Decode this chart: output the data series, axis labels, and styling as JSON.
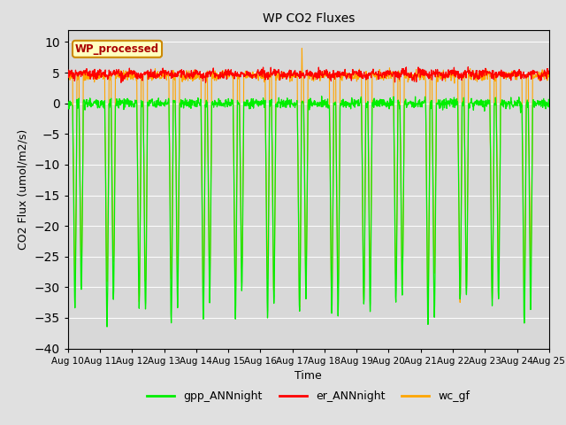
{
  "title": "WP CO2 Fluxes",
  "xlabel": "Time",
  "ylabel_display": "CO2 Flux (umol/m2/s)",
  "ylim": [
    -40,
    12
  ],
  "yticks": [
    -40,
    -35,
    -30,
    -25,
    -20,
    -15,
    -10,
    -5,
    0,
    5,
    10
  ],
  "xtick_labels": [
    "Aug 10",
    "Aug 11",
    "Aug 12",
    "Aug 13",
    "Aug 14",
    "Aug 15",
    "Aug 16",
    "Aug 17",
    "Aug 18",
    "Aug 19",
    "Aug 20",
    "Aug 21",
    "Aug 22",
    "Aug 23",
    "Aug 24",
    "Aug 25"
  ],
  "fig_bg_color": "#e0e0e0",
  "plot_bg_color": "#d8d8d8",
  "gpp_color": "#00ee00",
  "er_color": "#ff0000",
  "wc_color": "#ffa500",
  "legend_label_gpp": "gpp_ANNnight",
  "legend_label_er": "er_ANNnight",
  "legend_label_wc": "wc_gf",
  "wp_label": "WP_processed",
  "wp_label_color": "#aa0000",
  "wp_box_facecolor": "#ffffc0",
  "wp_box_edgecolor": "#cc8800",
  "n_days": 15,
  "ppd": 96,
  "seed": 42
}
